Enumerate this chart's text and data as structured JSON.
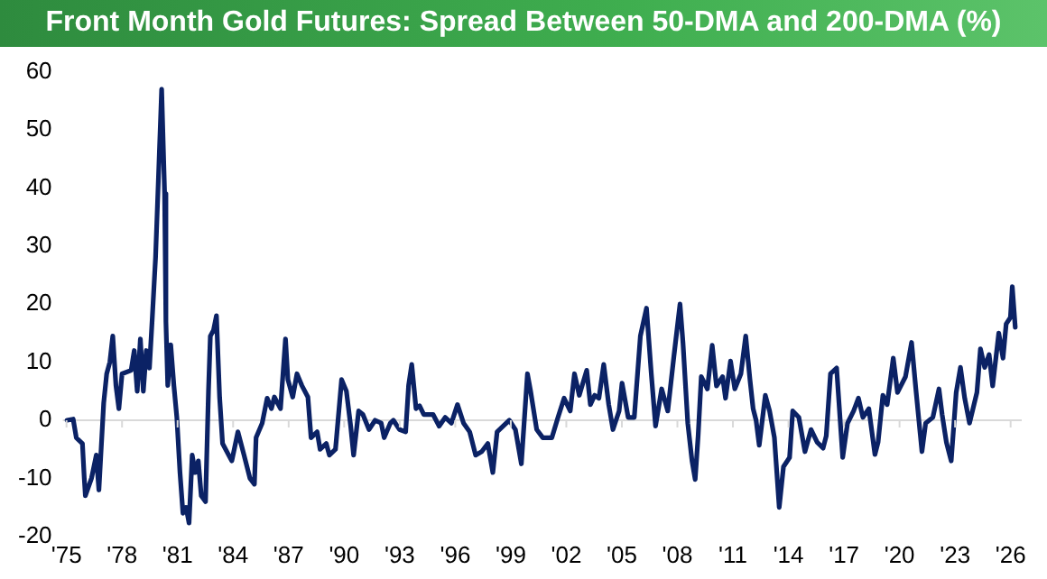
{
  "chart_data": {
    "type": "line",
    "title": "Front Month Gold Futures: Spread Between 50-DMA and 200-DMA (%)",
    "x": [
      1975.03,
      1975.36,
      1975.53,
      1975.86,
      1975.96,
      1976.02,
      1976.35,
      1976.61,
      1976.75,
      1977.01,
      1977.17,
      1977.34,
      1977.5,
      1977.67,
      1977.83,
      1978.0,
      1978.49,
      1978.66,
      1978.82,
      1978.99,
      1979.15,
      1979.31,
      1979.48,
      1979.64,
      1979.81,
      1979.97,
      1980.14,
      1980.3,
      1980.37,
      1980.47,
      1980.63,
      1980.8,
      1980.96,
      1981.13,
      1981.29,
      1981.46,
      1981.62,
      1981.79,
      1981.95,
      1982.12,
      1982.28,
      1982.51,
      1982.67,
      1982.77,
      1982.94,
      1983.1,
      1983.27,
      1983.43,
      1983.76,
      1983.93,
      1984.26,
      1984.59,
      1984.91,
      1985.15,
      1985.24,
      1985.57,
      1985.84,
      1986.07,
      1986.23,
      1986.56,
      1986.83,
      1986.96,
      1987.22,
      1987.45,
      1987.71,
      1988.04,
      1988.21,
      1988.54,
      1988.7,
      1989.03,
      1989.2,
      1989.53,
      1989.86,
      1990.12,
      1990.35,
      1990.51,
      1990.78,
      1991.01,
      1991.34,
      1991.67,
      1992.0,
      1992.16,
      1992.49,
      1992.66,
      1992.99,
      1993.32,
      1993.48,
      1993.65,
      1993.88,
      1994.07,
      1994.3,
      1994.8,
      1995.13,
      1995.46,
      1995.79,
      1996.12,
      1996.45,
      1996.78,
      1997.1,
      1997.43,
      1997.76,
      1998.03,
      1998.26,
      1998.59,
      1998.92,
      1999.25,
      1999.57,
      1999.9,
      2000.07,
      2000.4,
      2000.73,
      2001.22,
      2001.55,
      2001.88,
      2002.21,
      2002.44,
      2002.7,
      2003.1,
      2003.3,
      2003.53,
      2003.76,
      2004.02,
      2004.29,
      2004.52,
      2004.85,
      2005.01,
      2005.34,
      2005.67,
      2006.0,
      2006.33,
      2006.59,
      2006.82,
      2007.15,
      2007.48,
      2007.81,
      2008.14,
      2008.3,
      2008.56,
      2008.79,
      2008.96,
      2009.12,
      2009.29,
      2009.62,
      2009.88,
      2010.11,
      2010.44,
      2010.6,
      2010.87,
      2011.1,
      2011.43,
      2011.69,
      2011.92,
      2012.09,
      2012.25,
      2012.42,
      2012.75,
      2012.98,
      2013.24,
      2013.5,
      2013.73,
      2014.06,
      2014.23,
      2014.56,
      2014.89,
      2015.22,
      2015.55,
      2015.87,
      2016.04,
      2016.27,
      2016.6,
      2016.93,
      2017.19,
      2017.52,
      2017.78,
      2018.02,
      2018.34,
      2018.67,
      2018.84,
      2019.1,
      2019.33,
      2019.66,
      2019.89,
      2020.32,
      2020.65,
      2020.88,
      2021.21,
      2021.41,
      2021.8,
      2022.13,
      2022.3,
      2022.53,
      2022.79,
      2023.06,
      2023.29,
      2023.52,
      2023.78,
      2024.18,
      2024.37,
      2024.6,
      2024.84,
      2025.03,
      2025.36,
      2025.59,
      2025.76,
      2025.99,
      2026.09,
      2026.25
    ],
    "series": [
      {
        "color": "#0b2265",
        "values": [
          0,
          0.2,
          -3,
          -4,
          -10,
          -13,
          -10,
          -6,
          -12,
          3,
          8,
          10,
          14.5,
          6,
          2,
          8,
          8.6,
          12,
          5,
          14,
          5,
          12,
          9,
          18,
          28,
          42,
          57,
          39,
          17,
          6,
          13,
          6,
          0.5,
          -9,
          -16,
          -15,
          -17.7,
          -6,
          -9,
          -7,
          -13,
          -14,
          5,
          14.5,
          15.5,
          18,
          4,
          -4,
          -6,
          -7,
          -2,
          -6,
          -10,
          -11,
          -3,
          -0.5,
          3.8,
          2,
          4,
          2,
          14,
          7,
          4,
          8,
          6,
          4,
          -3,
          -2,
          -5,
          -4,
          -6,
          -5,
          7,
          5,
          -1,
          -6,
          1.6,
          1,
          -1.6,
          0,
          -0.5,
          -3,
          -0.5,
          0,
          -1.6,
          -2,
          6,
          9.6,
          2,
          2.5,
          1,
          1,
          -1,
          0.5,
          -0.5,
          2.7,
          -0.5,
          -2,
          -6,
          -5.4,
          -4,
          -9,
          -2,
          -1,
          0,
          -1.6,
          -7.5,
          8,
          5,
          -1.6,
          -3,
          -3,
          0.5,
          3.8,
          1.6,
          8,
          4.3,
          8.6,
          2.7,
          4.3,
          3.8,
          9.6,
          2.7,
          -1.6,
          1.6,
          6.4,
          0.5,
          0.5,
          14.5,
          19.3,
          8,
          -1,
          5.4,
          1.6,
          11,
          20,
          13.4,
          -0.5,
          -7,
          -10.2,
          -2.7,
          7.5,
          5.4,
          12.9,
          5.9,
          7.5,
          3.8,
          10.2,
          5.4,
          8,
          14.5,
          7,
          2,
          0,
          -4.3,
          4.3,
          1.6,
          -3,
          -15,
          -8,
          -6.4,
          1.6,
          0.5,
          -5.4,
          -1.6,
          -3.8,
          -4.8,
          -2.7,
          8,
          9,
          -6.4,
          -0.5,
          1.6,
          3.8,
          0.5,
          2,
          -5.9,
          -3.8,
          4.3,
          2.7,
          10.7,
          4.8,
          7.5,
          13.4,
          5.4,
          -5.4,
          -0.5,
          0.5,
          5.4,
          1,
          -3.8,
          -7,
          4.8,
          9.1,
          3.8,
          -0.5,
          4.8,
          12.3,
          9.1,
          11.3,
          5.9,
          15,
          10.7,
          16.6,
          17.7,
          23,
          16
        ]
      }
    ],
    "xlim": [
      1974.8,
      2026.6
    ],
    "xticks": [
      {
        "value": 1975,
        "label": "'75"
      },
      {
        "value": 1978,
        "label": "'78"
      },
      {
        "value": 1981,
        "label": "'81"
      },
      {
        "value": 1984,
        "label": "'84"
      },
      {
        "value": 1987,
        "label": "'87"
      },
      {
        "value": 1990,
        "label": "'90"
      },
      {
        "value": 1993,
        "label": "'93"
      },
      {
        "value": 1996,
        "label": "'96"
      },
      {
        "value": 1999,
        "label": "'99"
      },
      {
        "value": 2002,
        "label": "'02"
      },
      {
        "value": 2005,
        "label": "'05"
      },
      {
        "value": 2008,
        "label": "'08"
      },
      {
        "value": 2011,
        "label": "'11"
      },
      {
        "value": 2014,
        "label": "'14"
      },
      {
        "value": 2017,
        "label": "'17"
      },
      {
        "value": 2020,
        "label": "'20"
      },
      {
        "value": 2023,
        "label": "'23"
      },
      {
        "value": 2026,
        "label": "'26"
      }
    ],
    "ylim": [
      -20,
      60
    ],
    "yticks": [
      -20,
      -10,
      0,
      10,
      20,
      30,
      40,
      50,
      60
    ],
    "ref_lines": [
      {
        "axis": "y",
        "value": 0,
        "color": "#d9d9d9"
      }
    ],
    "grid": false,
    "legend": false,
    "marker": "none",
    "line_style": "solid"
  }
}
